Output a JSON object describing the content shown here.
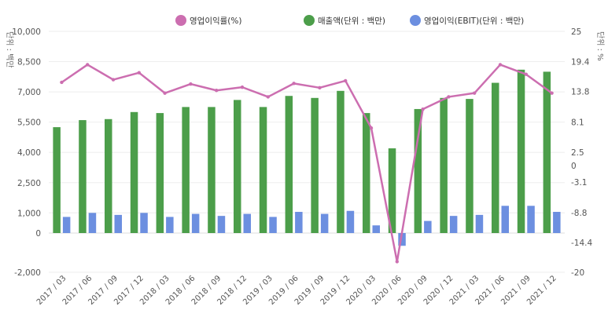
{
  "chart_data": {
    "type": "bar+line",
    "title": "",
    "legend_position": "top-center",
    "categories": [
      "2017 / 03",
      "2017 / 06",
      "2017 / 09",
      "2017 / 12",
      "2018 / 03",
      "2018 / 06",
      "2018 / 09",
      "2018 / 12",
      "2019 / 03",
      "2019 / 06",
      "2019 / 09",
      "2019 / 12",
      "2020 / 03",
      "2020 / 06",
      "2020 / 09",
      "2020 / 12",
      "2021 / 03",
      "2021 / 06",
      "2021 / 09",
      "2021 / 12"
    ],
    "y_left": {
      "label": "단위 : 백만",
      "ylim": [
        -2000,
        10000
      ],
      "ticks": [
        -2000,
        0,
        1000,
        2500,
        4000,
        5500,
        7000,
        8500,
        10000
      ],
      "tick_labels": [
        "-2,000",
        "0",
        "1,000",
        "2,500",
        "4,000",
        "5,500",
        "7,000",
        "8,500",
        "10,000"
      ]
    },
    "y_right": {
      "label": "단위 : %",
      "ylim": [
        -20,
        25
      ],
      "ticks": [
        -20,
        -14.4,
        -8.8,
        -3.1,
        0,
        2.5,
        8.1,
        13.8,
        19.4,
        25
      ],
      "tick_labels": [
        "-20",
        "-14.4",
        "-8.8",
        "-3.1",
        "0",
        "2.5",
        "8.1",
        "13.8",
        "19.4",
        "25"
      ]
    },
    "series": [
      {
        "name": "영업이익률(%)",
        "type": "line",
        "axis": "right",
        "color": "#cc6eb0",
        "values": [
          15.5,
          18.8,
          16.0,
          17.3,
          13.5,
          15.2,
          14.0,
          14.6,
          12.8,
          15.3,
          14.5,
          15.8,
          7.0,
          -18.0,
          10.5,
          12.8,
          13.5,
          18.8,
          17.0,
          13.5
        ]
      },
      {
        "name": "매출액(단위 : 백만)",
        "type": "bar",
        "axis": "left",
        "color": "#4c9e4a",
        "values": [
          5250,
          5600,
          5650,
          6000,
          5950,
          6250,
          6250,
          6600,
          6250,
          6800,
          6700,
          7050,
          5950,
          4200,
          6150,
          6700,
          6650,
          7450,
          8100,
          8000
        ]
      },
      {
        "name": "영업이익(EBIT)(단위 : 백만)",
        "type": "bar",
        "axis": "left",
        "color": "#6c8fe0",
        "values": [
          800,
          1000,
          900,
          1000,
          800,
          950,
          850,
          950,
          800,
          1050,
          950,
          1100,
          380,
          -650,
          600,
          850,
          900,
          1350,
          1350,
          1050
        ]
      }
    ]
  }
}
